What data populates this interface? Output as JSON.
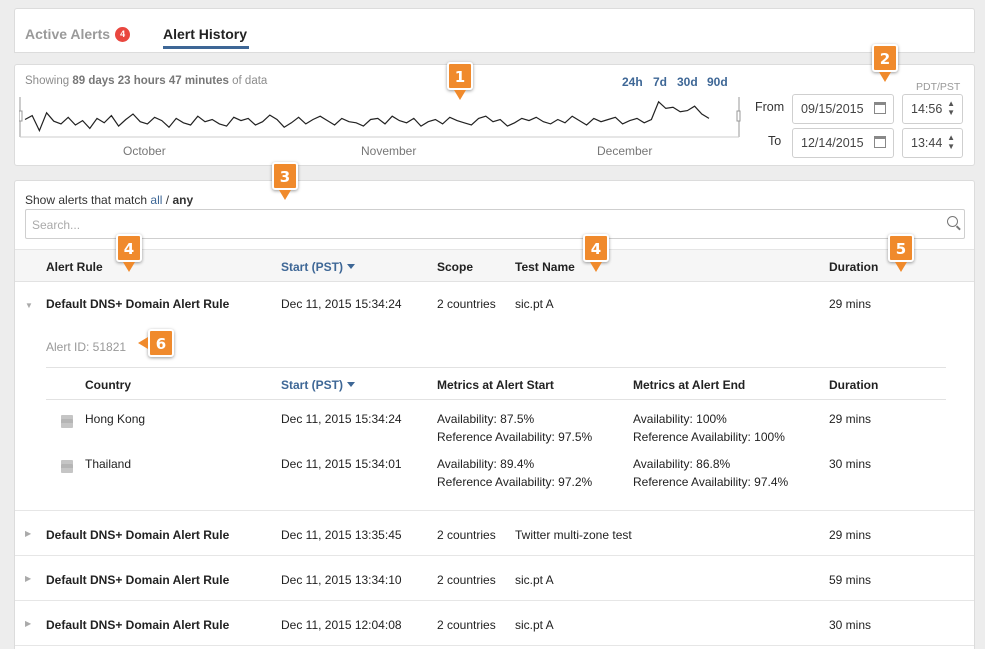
{
  "tabs": {
    "active_alerts": {
      "label": "Active Alerts",
      "count": "4"
    },
    "alert_history": {
      "label": "Alert History"
    }
  },
  "timeline": {
    "showing_prefix": "Showing",
    "showing_duration": "89 days 23 hours 47 minutes",
    "showing_suffix": "of data",
    "ranges": [
      "24h",
      "7d",
      "30d",
      "90d"
    ],
    "months": [
      "October",
      "November",
      "December"
    ],
    "timezone": "PDT/PST",
    "from_label": "From",
    "to_label": "To",
    "from_date": "09/15/2015",
    "from_time": "14:56",
    "to_date": "12/14/2015",
    "to_time": "13:44"
  },
  "filter": {
    "match_prefix": "Show alerts that match",
    "all": "all",
    "sep": "/",
    "any": "any",
    "search_placeholder": "Search..."
  },
  "table": {
    "headers": {
      "rule": "Alert Rule",
      "start": "Start (PST)",
      "scope": "Scope",
      "test": "Test Name",
      "duration": "Duration"
    },
    "rows": [
      {
        "rule": "Default DNS+ Domain Alert Rule",
        "start": "Dec 11, 2015 15:34:24",
        "scope": "2 countries",
        "test": "sic.pt A",
        "duration": "29 mins"
      },
      {
        "rule": "Default DNS+ Domain Alert Rule",
        "start": "Dec 11, 2015 13:35:45",
        "scope": "2 countries",
        "test": "Twitter multi-zone test",
        "duration": "29 mins"
      },
      {
        "rule": "Default DNS+ Domain Alert Rule",
        "start": "Dec 11, 2015 13:34:10",
        "scope": "2 countries",
        "test": "sic.pt A",
        "duration": "59 mins"
      },
      {
        "rule": "Default DNS+ Domain Alert Rule",
        "start": "Dec 11, 2015 12:04:08",
        "scope": "2 countries",
        "test": "sic.pt A",
        "duration": "30 mins"
      }
    ]
  },
  "detail": {
    "alert_id": "Alert ID: 51821",
    "headers": {
      "country": "Country",
      "start": "Start (PST)",
      "metrics_start": "Metrics at Alert Start",
      "metrics_end": "Metrics at Alert End",
      "duration": "Duration"
    },
    "rows": [
      {
        "country": "Hong Kong",
        "start": "Dec 11, 2015 15:34:24",
        "start_avail": "Availability: 87.5%",
        "start_ref": "Reference Availability: 97.5%",
        "end_avail": "Availability: 100%",
        "end_ref": "Reference Availability: 100%",
        "duration": "29 mins"
      },
      {
        "country": "Thailand",
        "start": "Dec 11, 2015 15:34:01",
        "start_avail": "Availability: 89.4%",
        "start_ref": "Reference Availability: 97.2%",
        "end_avail": "Availability: 86.8%",
        "end_ref": "Reference Availability: 97.4%",
        "duration": "30 mins"
      }
    ]
  },
  "callouts": [
    "1",
    "2",
    "3",
    "4",
    "4",
    "5",
    "6"
  ],
  "colors": {
    "accent": "#3e6796",
    "badge": "#e9473f",
    "callout": "#f08a2c"
  },
  "sparkline_values": [
    62,
    55,
    82,
    50,
    65,
    70,
    58,
    72,
    64,
    78,
    60,
    68,
    55,
    74,
    62,
    52,
    66,
    70,
    58,
    64,
    76,
    60,
    68,
    72,
    56,
    66,
    62,
    70,
    74,
    58,
    64,
    60,
    72,
    66,
    54,
    62,
    76,
    68,
    58,
    70,
    62,
    56,
    64,
    72,
    60,
    66,
    68,
    74,
    62,
    60,
    70,
    56,
    64,
    68,
    60,
    74,
    66,
    62,
    70,
    58,
    64,
    68,
    72,
    60,
    56,
    66,
    62,
    74,
    68,
    60,
    64,
    58,
    66,
    70,
    62,
    68,
    56,
    64,
    72,
    60,
    66,
    62,
    58,
    70,
    64,
    60,
    68,
    62,
    30,
    42,
    40,
    48,
    46,
    38,
    52,
    60
  ]
}
